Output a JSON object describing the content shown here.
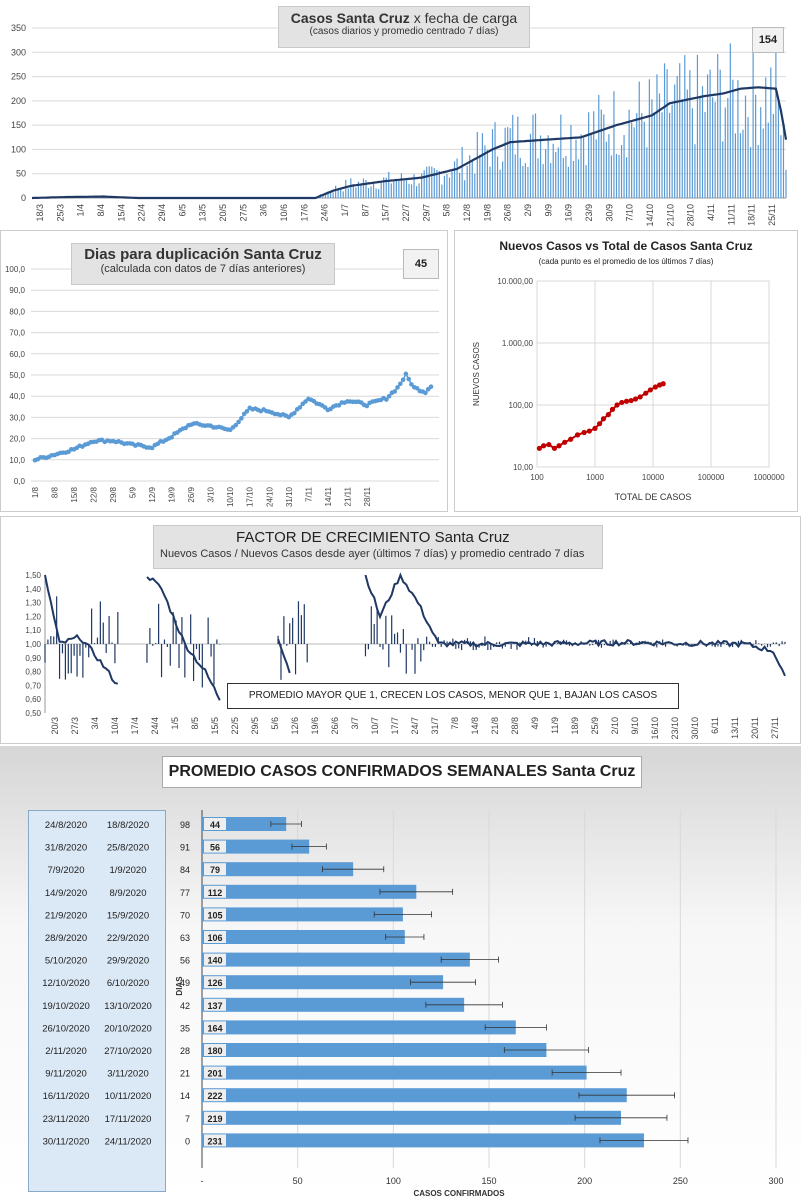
{
  "chart1": {
    "type": "bar",
    "title_a": "Casos  Santa  Cruz",
    "title_b": " x  fecha  de  carga",
    "subtitle": "(casos diarios y promedio  centrado  7 días)",
    "badge": "154",
    "yticks": [
      "0",
      "50",
      "100",
      "150",
      "200",
      "250",
      "300",
      "350"
    ],
    "xticks": [
      "18/3",
      "25/3",
      "1/4",
      "8/4",
      "15/4",
      "22/4",
      "29/4",
      "6/5",
      "13/5",
      "20/5",
      "27/5",
      "3/6",
      "10/6",
      "17/6",
      "24/6",
      "1/7",
      "8/7",
      "15/7",
      "22/7",
      "29/7",
      "5/8",
      "12/8",
      "19/8",
      "26/8",
      "2/9",
      "9/9",
      "16/9",
      "23/9",
      "30/9",
      "7/10",
      "14/10",
      "21/10",
      "28/10",
      "4/11",
      "11/11",
      "18/11",
      "25/11"
    ],
    "ylim": [
      0,
      350
    ],
    "avg_keyframes": [
      [
        0,
        0
      ],
      [
        14,
        2
      ],
      [
        28,
        3
      ],
      [
        42,
        0
      ],
      [
        112,
        0
      ],
      [
        119,
        15
      ],
      [
        126,
        25
      ],
      [
        140,
        35
      ],
      [
        154,
        42
      ],
      [
        168,
        60
      ],
      [
        182,
        100
      ],
      [
        189,
        115
      ],
      [
        203,
        120
      ],
      [
        217,
        125
      ],
      [
        231,
        150
      ],
      [
        245,
        170
      ],
      [
        252,
        195
      ],
      [
        266,
        210
      ],
      [
        273,
        215
      ],
      [
        280,
        225
      ],
      [
        287,
        228
      ],
      [
        294,
        225
      ],
      [
        296,
        180
      ],
      [
        298,
        120
      ]
    ],
    "bar_keyframes": [
      [
        0,
        0
      ],
      [
        14,
        2
      ],
      [
        28,
        4
      ],
      [
        42,
        0
      ],
      [
        112,
        0
      ],
      [
        119,
        25
      ],
      [
        126,
        40
      ],
      [
        140,
        50
      ],
      [
        154,
        55
      ],
      [
        168,
        90
      ],
      [
        182,
        150
      ],
      [
        189,
        170
      ],
      [
        203,
        180
      ],
      [
        217,
        185
      ],
      [
        231,
        220
      ],
      [
        245,
        240
      ],
      [
        252,
        265
      ],
      [
        266,
        275
      ],
      [
        273,
        300
      ],
      [
        280,
        280
      ],
      [
        287,
        290
      ],
      [
        294,
        300
      ],
      [
        296,
        200
      ],
      [
        298,
        120
      ]
    ]
  },
  "chart2": {
    "type": "line",
    "title": "Dias para duplicación Santa Cruz",
    "subtitle": "(calculada con datos de 7 días anteriores)",
    "badge": "45",
    "yticks": [
      "0,0",
      "10,0",
      "20,0",
      "30,0",
      "40,0",
      "50,0",
      "60,0",
      "70,0",
      "80,0",
      "90,0",
      "100,0"
    ],
    "xticks": [
      "1/8",
      "8/8",
      "15/8",
      "22/8",
      "29/8",
      "5/9",
      "12/9",
      "19/9",
      "26/9",
      "3/10",
      "10/10",
      "17/10",
      "24/10",
      "31/10",
      "7/11",
      "14/11",
      "21/11",
      "28/11"
    ],
    "ylim": [
      0,
      100
    ],
    "keyframes": [
      [
        0,
        10
      ],
      [
        7,
        12.5
      ],
      [
        14,
        15
      ],
      [
        21,
        19
      ],
      [
        28,
        19
      ],
      [
        35,
        17
      ],
      [
        42,
        16
      ],
      [
        49,
        21
      ],
      [
        56,
        27
      ],
      [
        63,
        26
      ],
      [
        70,
        24
      ],
      [
        77,
        34
      ],
      [
        84,
        33
      ],
      [
        91,
        30
      ],
      [
        98,
        39
      ],
      [
        105,
        34
      ],
      [
        112,
        38
      ],
      [
        119,
        36
      ],
      [
        126,
        39
      ],
      [
        130,
        44
      ],
      [
        133,
        50
      ],
      [
        136,
        44
      ],
      [
        140,
        42
      ],
      [
        142,
        45
      ]
    ]
  },
  "chart3": {
    "type": "scatter",
    "title": "Nuevos Casos vs Total de Casos Santa Cruz",
    "subtitle": "(cada punto es el promedio de los últimos 7 días)",
    "xlabel": "TOTAL DE CASOS",
    "ylabel": "NUEVOS  CASOS",
    "yticks": [
      "10,00",
      "100,00",
      "1.000,00",
      "10.000,00"
    ],
    "xticks": [
      "100",
      "1000",
      "10000",
      "100000",
      "1000000"
    ],
    "points": [
      [
        110,
        20
      ],
      [
        130,
        22
      ],
      [
        160,
        23
      ],
      [
        200,
        20
      ],
      [
        240,
        22
      ],
      [
        300,
        25
      ],
      [
        380,
        28
      ],
      [
        500,
        33
      ],
      [
        650,
        36
      ],
      [
        800,
        38
      ],
      [
        1000,
        42
      ],
      [
        1200,
        50
      ],
      [
        1400,
        60
      ],
      [
        1700,
        70
      ],
      [
        2000,
        85
      ],
      [
        2400,
        100
      ],
      [
        2900,
        110
      ],
      [
        3500,
        115
      ],
      [
        4200,
        118
      ],
      [
        5000,
        125
      ],
      [
        6000,
        135
      ],
      [
        7500,
        155
      ],
      [
        9000,
        175
      ],
      [
        11000,
        195
      ],
      [
        13000,
        210
      ],
      [
        15000,
        220
      ]
    ]
  },
  "chart4": {
    "type": "bar",
    "title_a": "FACTOR DE CRECIMIENTO",
    "title_b": " Santa Cruz",
    "subtitle": "Nuevos Casos  / Nuevos Casos desde ayer (últimos 7 días) y promedio  centrado  7 días",
    "note": "PROMEDIO MAYOR QUE 1, CRECEN LOS CASOS, MENOR QUE 1, BAJAN LOS CASOS",
    "yticks": [
      "0,50",
      "0,60",
      "0,70",
      "0,80",
      "0,90",
      "1,00",
      "1,10",
      "1,20",
      "1,30",
      "1,40",
      "1,50"
    ],
    "xticks": [
      "20/3",
      "27/3",
      "3/4",
      "10/4",
      "17/4",
      "24/4",
      "1/5",
      "8/5",
      "15/5",
      "22/5",
      "29/5",
      "5/6",
      "12/6",
      "19/6",
      "26/6",
      "3/7",
      "10/7",
      "17/7",
      "24/7",
      "31/7",
      "7/8",
      "14/8",
      "21/8",
      "28/8",
      "4/9",
      "11/9",
      "18/9",
      "25/9",
      "2/10",
      "9/10",
      "16/10",
      "23/10",
      "30/10",
      "6/11",
      "13/11",
      "20/11",
      "27/11"
    ],
    "ylim": [
      0.5,
      1.5
    ]
  },
  "chart5": {
    "type": "bar",
    "title": "PROMEDIO CASOS CONFIRMADOS SEMANALES Santa Cruz",
    "xlabel": "CASOS CONFIRMADOS",
    "ylabel": "DIAS",
    "xticks": [
      "-",
      "50",
      "100",
      "150",
      "200",
      "250",
      "300"
    ],
    "xlim": [
      0,
      300
    ],
    "rows": [
      {
        "end": "24/8/2020",
        "start": "18/8/2020",
        "dias": "98",
        "value": 44,
        "err": 8
      },
      {
        "end": "31/8/2020",
        "start": "25/8/2020",
        "dias": "91",
        "value": 56,
        "err": 9
      },
      {
        "end": "7/9/2020",
        "start": "1/9/2020",
        "dias": "84",
        "value": 79,
        "err": 16
      },
      {
        "end": "14/9/2020",
        "start": "8/9/2020",
        "dias": "77",
        "value": 112,
        "err": 19
      },
      {
        "end": "21/9/2020",
        "start": "15/9/2020",
        "dias": "70",
        "value": 105,
        "err": 15
      },
      {
        "end": "28/9/2020",
        "start": "22/9/2020",
        "dias": "63",
        "value": 106,
        "err": 10
      },
      {
        "end": "5/10/2020",
        "start": "29/9/2020",
        "dias": "56",
        "value": 140,
        "err": 15
      },
      {
        "end": "12/10/2020",
        "start": "6/10/2020",
        "dias": "49",
        "value": 126,
        "err": 17
      },
      {
        "end": "19/10/2020",
        "start": "13/10/2020",
        "dias": "42",
        "value": 137,
        "err": 20
      },
      {
        "end": "26/10/2020",
        "start": "20/10/2020",
        "dias": "35",
        "value": 164,
        "err": 16
      },
      {
        "end": "2/11/2020",
        "start": "27/10/2020",
        "dias": "28",
        "value": 180,
        "err": 22
      },
      {
        "end": "9/11/2020",
        "start": "3/11/2020",
        "dias": "21",
        "value": 201,
        "err": 18
      },
      {
        "end": "16/11/2020",
        "start": "10/11/2020",
        "dias": "14",
        "value": 222,
        "err": 25
      },
      {
        "end": "23/11/2020",
        "start": "17/11/2020",
        "dias": "7",
        "value": 219,
        "err": 24
      },
      {
        "end": "30/11/2020",
        "start": "24/11/2020",
        "dias": "0",
        "value": 231,
        "err": 23
      }
    ]
  },
  "colors": {
    "bar": "#5b9bd5",
    "avg": "#1f3864",
    "dup": "#5b9bd5",
    "scatter": "#c00000",
    "grid": "#d9d9d9"
  }
}
